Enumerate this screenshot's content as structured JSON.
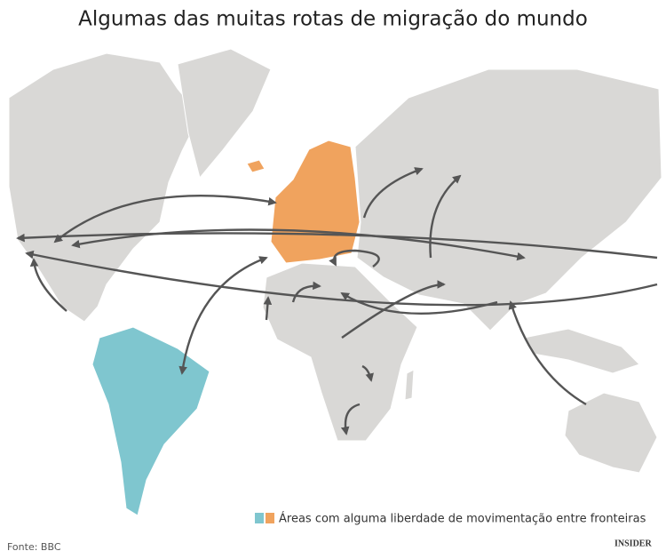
{
  "title": "Algumas das muitas rotas de migração do mundo",
  "legend": {
    "label": "Áreas com alguma liberdade de movimentação entre fronteiras"
  },
  "source": "Fonte: BBC",
  "logo": "INSIDER"
}
